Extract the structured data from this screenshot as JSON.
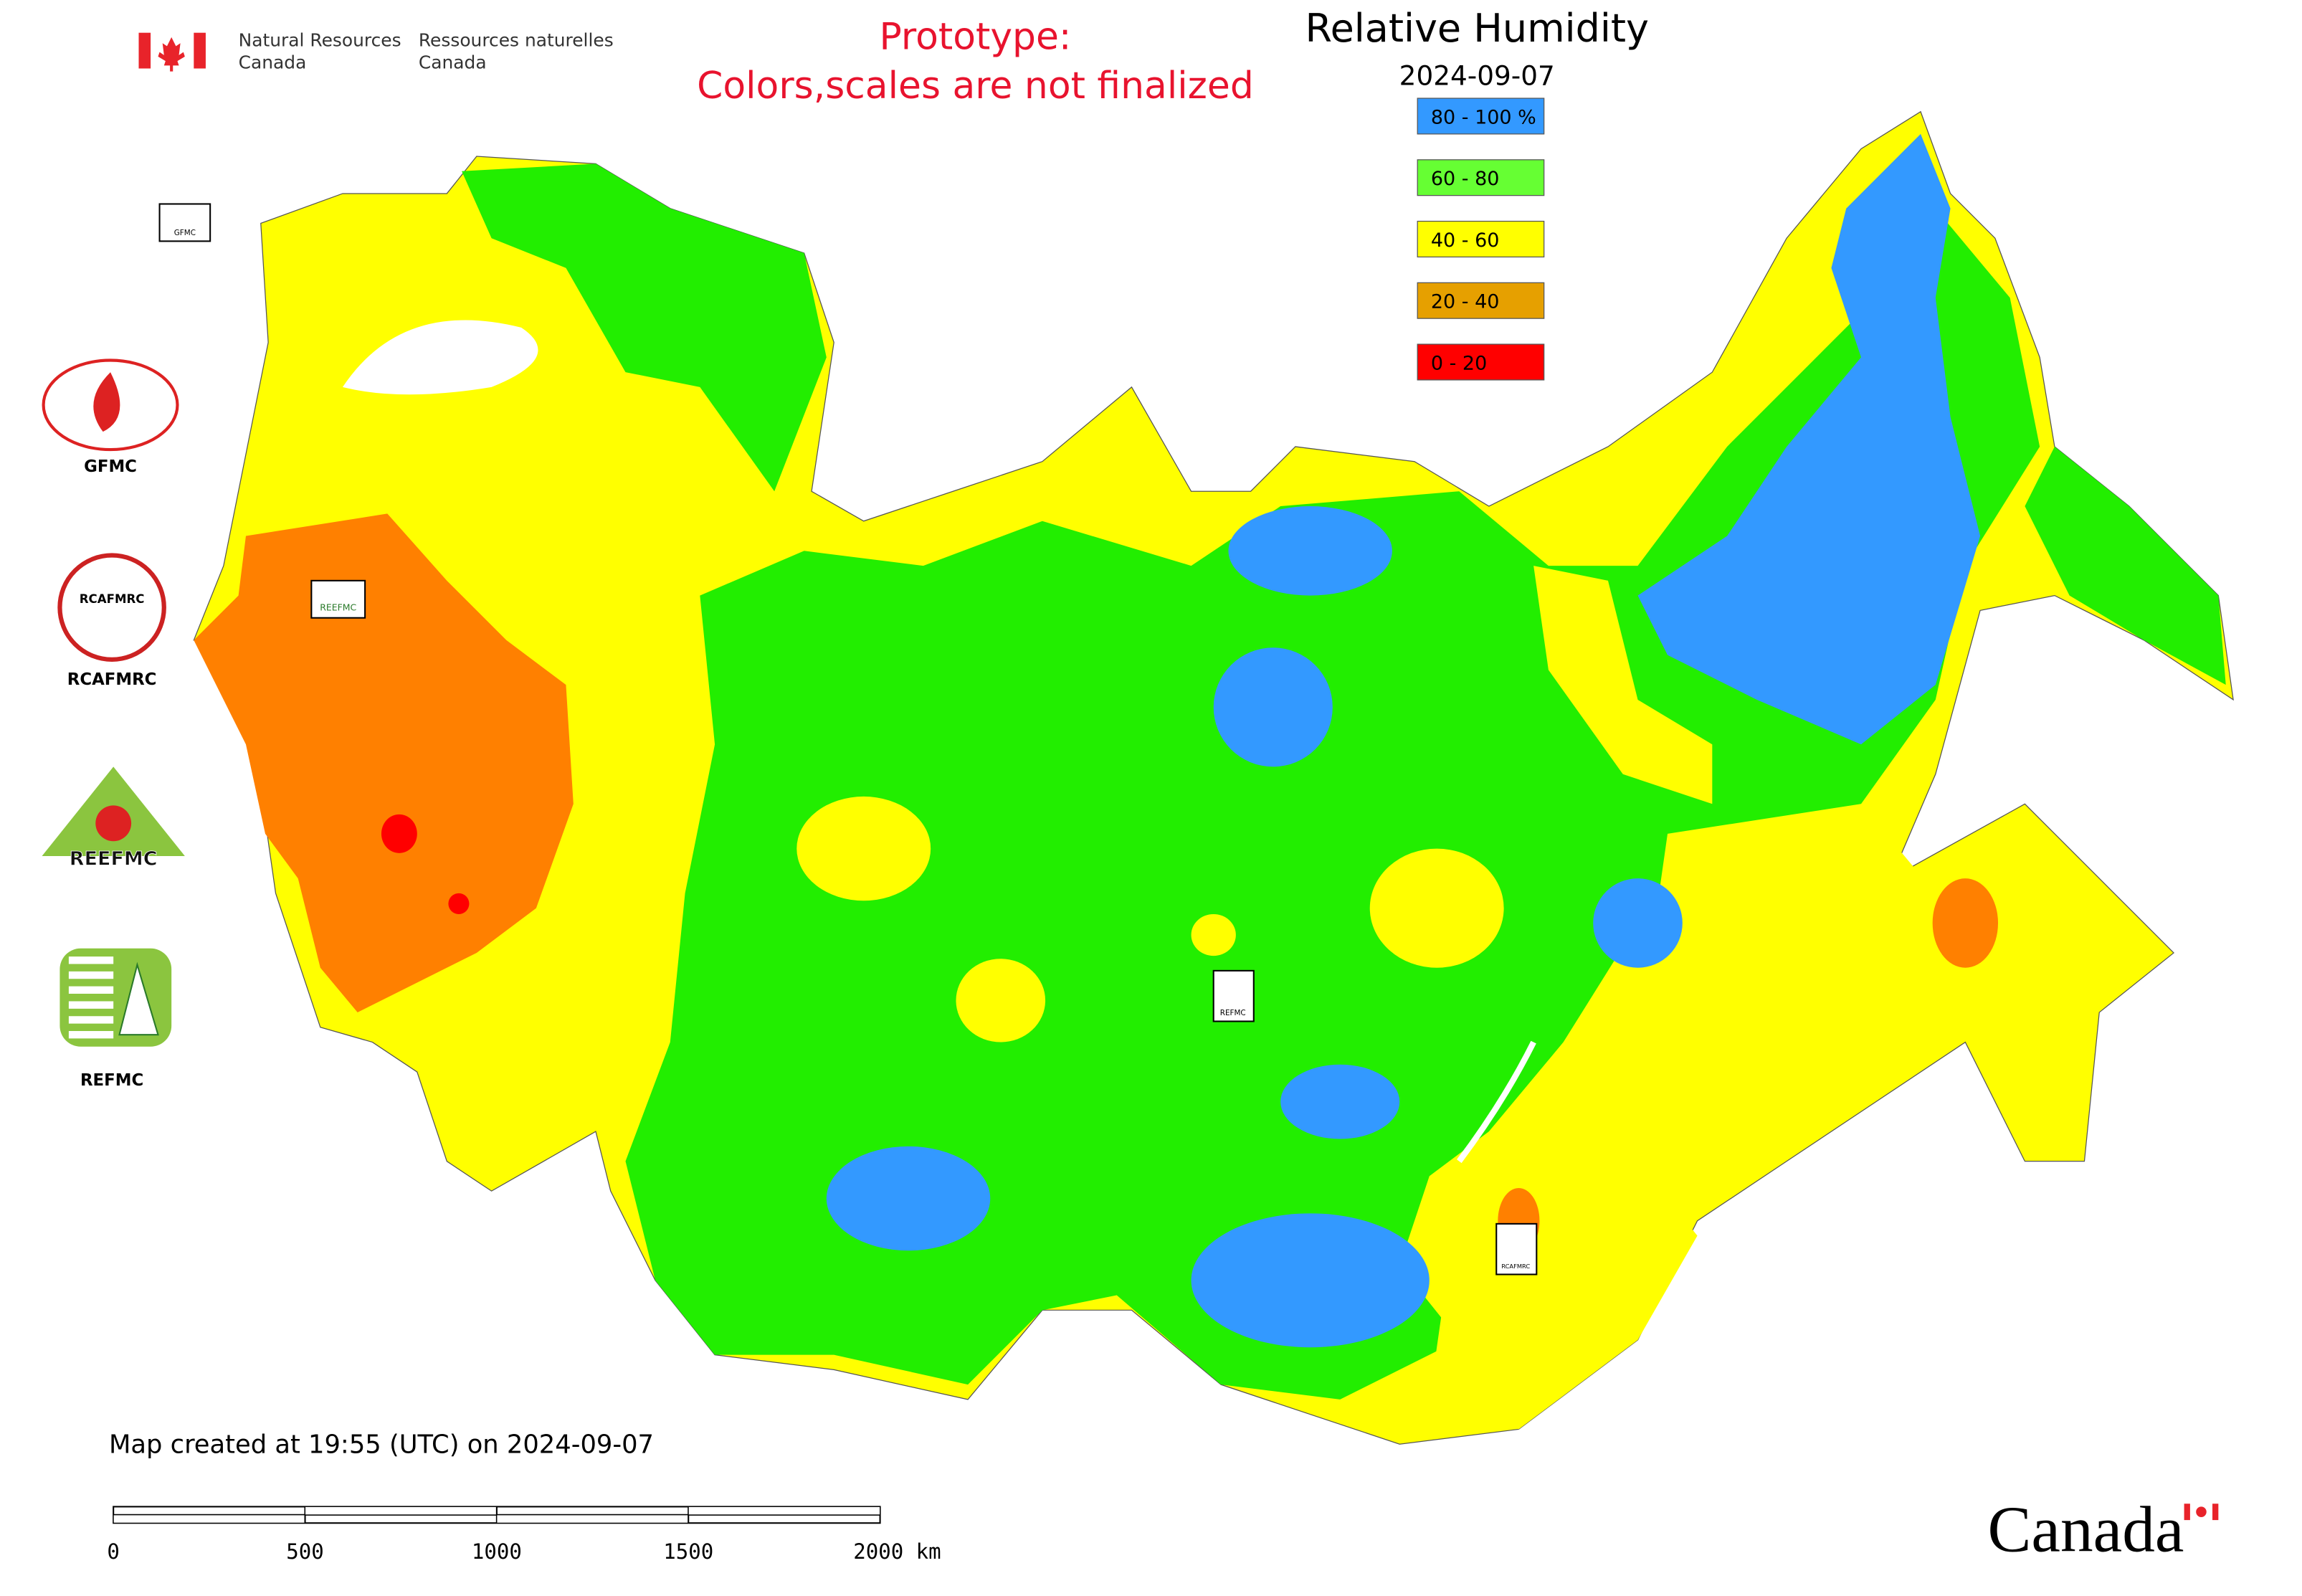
{
  "header": {
    "nrcan_en": [
      "Natural Resources",
      "Canada"
    ],
    "nrcan_fr": [
      "Ressources naturelles",
      "Canada"
    ]
  },
  "notice": [
    "Prototype:",
    "Colors,scales are not finalized"
  ],
  "title": "Relative Humidity",
  "date": "2024-09-07",
  "legend": [
    {
      "label": "80 - 100 %",
      "color": "#3399ff"
    },
    {
      "label": "60 - 80",
      "color": "#66ff33"
    },
    {
      "label": "40 - 60",
      "color": "#ffff00"
    },
    {
      "label": "20 - 40",
      "color": "#e6a000"
    },
    {
      "label": "0 - 20",
      "color": "#ff0000"
    }
  ],
  "logos": [
    {
      "label": "GFMC"
    },
    {
      "label": "RCAFMRC"
    },
    {
      "label": "REEFMC"
    },
    {
      "label": "REFMC"
    }
  ],
  "footer": "Map created at 19:55 (UTC) on 2024-09-07",
  "scale_bar": [
    "0",
    "500",
    "1000",
    "1500",
    "2000 km"
  ],
  "wordmark": "Canada"
}
